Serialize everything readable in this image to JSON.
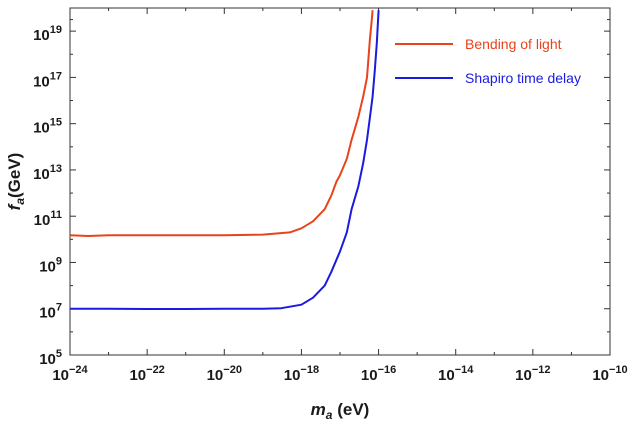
{
  "chart_data": {
    "type": "line",
    "x_scale": "log",
    "y_scale": "log",
    "xlim": [
      1e-24,
      1e-10
    ],
    "ylim": [
      100000.0,
      1e+20
    ],
    "xlabel": {
      "var": "m",
      "sub": "a",
      "unit": " (eV)"
    },
    "ylabel": {
      "var": "f",
      "sub": "a",
      "unit": "(GeV)"
    },
    "x_ticks": [
      {
        "base": "10",
        "exp": "−24",
        "value": 1e-24
      },
      {
        "base": "10",
        "exp": "−22",
        "value": 1e-22
      },
      {
        "base": "10",
        "exp": "−20",
        "value": 1e-20
      },
      {
        "base": "10",
        "exp": "−18",
        "value": 1e-18
      },
      {
        "base": "10",
        "exp": "−16",
        "value": 1e-16
      },
      {
        "base": "10",
        "exp": "−14",
        "value": 1e-14
      },
      {
        "base": "10",
        "exp": "−12",
        "value": 1e-12
      },
      {
        "base": "10",
        "exp": "−10",
        "value": 1e-10
      }
    ],
    "y_ticks": [
      {
        "base": "10",
        "exp": "5",
        "value": 100000.0
      },
      {
        "base": "10",
        "exp": "7",
        "value": 10000000.0
      },
      {
        "base": "10",
        "exp": "9",
        "value": 1000000000.0
      },
      {
        "base": "10",
        "exp": "11",
        "value": 100000000000.0
      },
      {
        "base": "10",
        "exp": "13",
        "value": 10000000000000.0
      },
      {
        "base": "10",
        "exp": "15",
        "value": 1000000000000000.0
      },
      {
        "base": "10",
        "exp": "17",
        "value": 1e+17
      },
      {
        "base": "10",
        "exp": "19",
        "value": 1e+19
      }
    ],
    "legend_position": "top-right",
    "grid": false,
    "series": [
      {
        "name": "Bending of light",
        "color": "#e8441c",
        "x": [
          1e-24,
          3e-24,
          1e-23,
          1e-22,
          1e-21,
          1e-20,
          1e-19,
          5e-19,
          1e-18,
          2e-18,
          4e-18,
          6e-18,
          8e-18,
          1e-17,
          1.5e-17,
          2e-17,
          3e-17,
          4e-17,
          5e-17,
          5.5e-17,
          6e-17,
          6.5e-17,
          7e-17
        ],
        "y": [
          15000000000.0,
          14000000000.0,
          15000000000.0,
          15000000000.0,
          15000000000.0,
          15000000000.0,
          16000000000.0,
          20000000000.0,
          30000000000.0,
          60000000000.0,
          200000000000.0,
          800000000000.0,
          3000000000000.0,
          6000000000000.0,
          30000000000000.0,
          200000000000000.0,
          2000000000000000.0,
          1.5e+16,
          1e+17,
          8e+17,
          5e+18,
          2e+19,
          8e+19
        ]
      },
      {
        "name": "Shapiro time delay",
        "color": "#1a1ae0",
        "x": [
          1e-24,
          3e-24,
          1e-23,
          1e-22,
          1e-21,
          1e-20,
          1e-19,
          3e-19,
          1e-18,
          2e-18,
          4e-18,
          6e-18,
          1e-17,
          1.5e-17,
          2e-17,
          3e-17,
          4e-17,
          5e-17,
          6e-17,
          7e-17,
          8e-17,
          9e-17,
          1e-16
        ],
        "y": [
          10000000.0,
          10000000.0,
          10000000.0,
          9700000.0,
          9700000.0,
          10000000.0,
          10000000.0,
          10500000.0,
          15000000.0,
          30000000.0,
          100000000.0,
          400000000.0,
          3000000000.0,
          20000000000.0,
          200000000000.0,
          2000000000000.0,
          20000000000000.0,
          200000000000000.0,
          2000000000000000.0,
          1.5e+16,
          2e+17,
          3e+18,
          8e+19
        ]
      }
    ]
  }
}
